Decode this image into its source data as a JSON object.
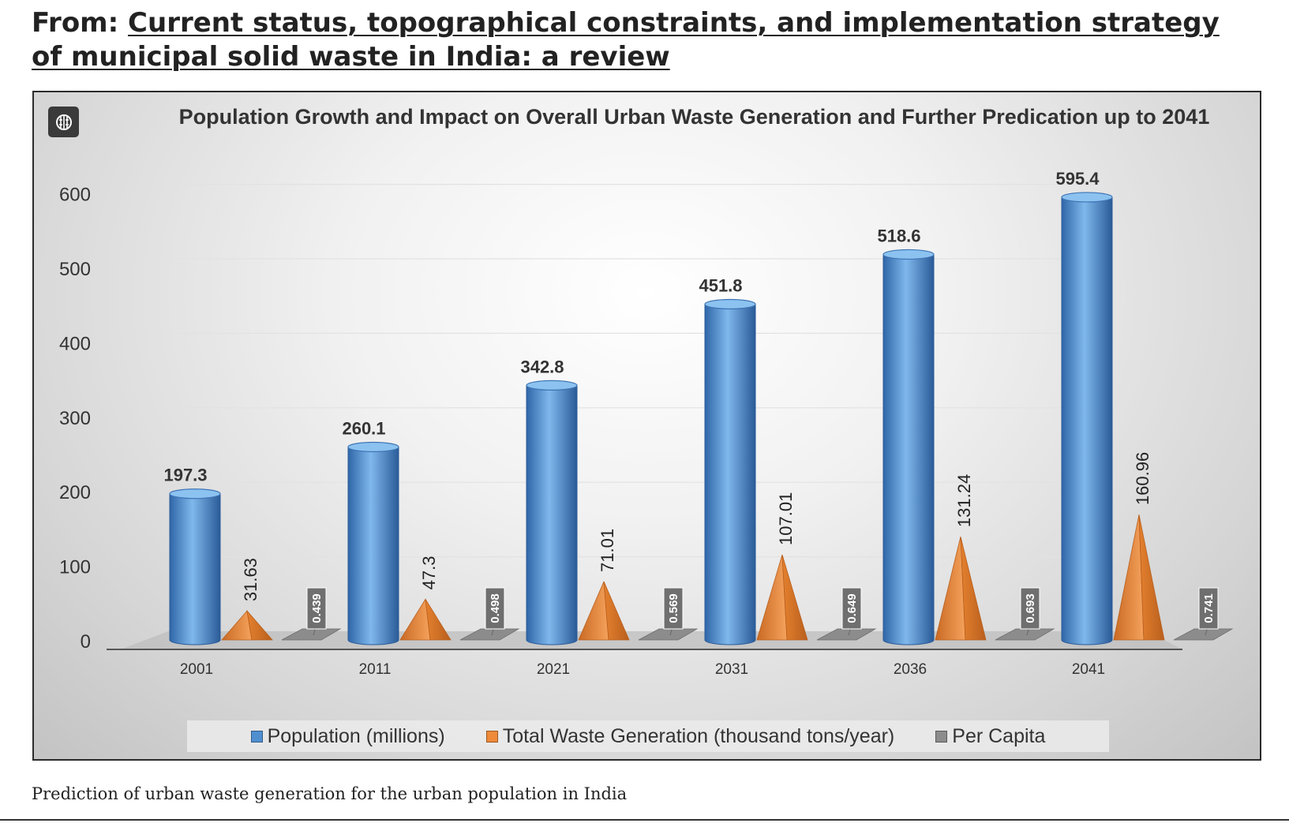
{
  "header": {
    "prefix": "From: ",
    "title": "Current status, topographical constraints, and implementation strategy of municipal solid waste in India: a review"
  },
  "badge": {
    "icon": "brain-icon"
  },
  "caption": "Prediction of urban waste generation for the urban population in India",
  "chart_data": {
    "type": "bar",
    "style": "3d-clustered",
    "title": "Population Growth and Impact on Overall Urban Waste Generation and Further Predication up to 2041",
    "xlabel": "",
    "ylabel": "",
    "categories": [
      "2001",
      "2011",
      "2021",
      "2031",
      "2036",
      "2041"
    ],
    "ylim": [
      0,
      600
    ],
    "yticks": [
      "0",
      "100",
      "200",
      "300",
      "400",
      "500",
      "600"
    ],
    "grid": true,
    "legend": "bottom",
    "series": [
      {
        "name": "Population (millions)",
        "shape": "cylinder",
        "color": "#4f8fd0",
        "values": [
          197.3,
          260.1,
          342.8,
          451.8,
          518.6,
          595.4
        ],
        "labels": [
          "197.3",
          "260.1",
          "342.8",
          "451.8",
          "518.6",
          "595.4"
        ]
      },
      {
        "name": "Total Waste Generation (thousand tons/year)",
        "shape": "pyramid",
        "color": "#ee8a3a",
        "values": [
          31.63,
          47.3,
          71.01,
          107.01,
          131.24,
          160.96
        ],
        "labels": [
          "31.63",
          "47.3",
          "71.01",
          "107.01",
          "131.24",
          "160.96"
        ]
      },
      {
        "name": "Per Capita",
        "shape": "box",
        "color": "#8c8c8c",
        "values": [
          0.439,
          0.498,
          0.569,
          0.649,
          0.693,
          0.741
        ],
        "labels": [
          "0.439",
          "0.498",
          "0.569",
          "0.649",
          "0.693",
          "0.741"
        ]
      }
    ]
  }
}
